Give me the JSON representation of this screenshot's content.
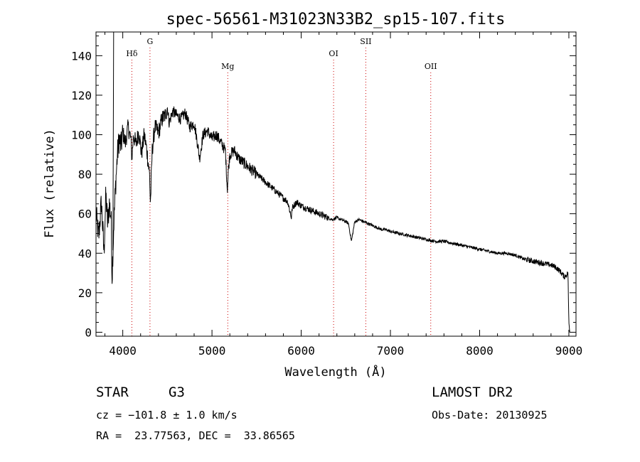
{
  "chart_data": {
    "type": "line",
    "title": "spec-56561-M31023N33B2_sp15-107.fits",
    "xlabel": "Wavelength (Å)",
    "ylabel": "Flux (relative)",
    "xlim": [
      3700,
      9080
    ],
    "ylim": [
      -2,
      152
    ],
    "x_ticks": [
      4000,
      5000,
      6000,
      7000,
      8000,
      9000
    ],
    "y_ticks": [
      0,
      20,
      40,
      60,
      80,
      100,
      120,
      140
    ],
    "grid": false,
    "series": [
      {
        "name": "flux",
        "x": [
          3700,
          3730,
          3760,
          3790,
          3810,
          3830,
          3850,
          3870,
          3880,
          3900,
          3920,
          3940,
          3960,
          3980,
          4000,
          4030,
          4060,
          4090,
          4102,
          4120,
          4150,
          4180,
          4210,
          4240,
          4270,
          4300,
          4310,
          4330,
          4360,
          4400,
          4440,
          4480,
          4500,
          4520,
          4560,
          4600,
          4650,
          4700,
          4750,
          4800,
          4830,
          4861,
          4900,
          4950,
          5000,
          5050,
          5100,
          5150,
          5172,
          5183,
          5200,
          5250,
          5300,
          5350,
          5400,
          5450,
          5500,
          5550,
          5600,
          5650,
          5700,
          5750,
          5800,
          5850,
          5890,
          5900,
          5950,
          6000,
          6050,
          6100,
          6150,
          6200,
          6250,
          6300,
          6350,
          6400,
          6450,
          6500,
          6530,
          6563,
          6600,
          6650,
          6700,
          6750,
          6800,
          6850,
          6900,
          6950,
          7000,
          7100,
          7200,
          7300,
          7400,
          7500,
          7600,
          7700,
          7800,
          7900,
          8000,
          8100,
          8200,
          8300,
          8400,
          8500,
          8600,
          8700,
          8800,
          8850,
          8900,
          8950,
          8990,
          9000,
          9010
        ],
        "values": [
          60,
          48,
          66,
          40,
          70,
          55,
          65,
          58,
          28,
          55,
          75,
          90,
          98,
          94,
          101,
          96,
          104,
          98,
          88,
          100,
          95,
          102,
          90,
          100,
          92,
          80,
          65,
          92,
          104,
          101,
          108,
          110,
          114,
          106,
          112,
          110,
          108,
          111,
          104,
          106,
          98,
          88,
          100,
          102,
          98,
          100,
          96,
          92,
          72,
          82,
          90,
          92,
          88,
          86,
          84,
          82,
          80,
          78,
          76,
          74,
          72,
          70,
          68,
          66,
          58,
          63,
          66,
          64,
          63,
          62,
          61,
          60,
          59,
          58,
          57,
          58,
          57,
          56,
          55,
          46,
          56,
          57,
          56,
          55,
          54,
          53,
          52,
          52,
          51,
          50,
          49,
          48,
          47,
          46,
          46,
          45,
          44,
          43,
          42,
          41,
          40,
          40,
          39,
          37,
          36,
          35,
          34,
          33,
          31,
          28,
          30,
          5,
          0
        ]
      }
    ],
    "line_markers": [
      {
        "label": "Hδ",
        "x": 4102,
        "label_pos": "upper"
      },
      {
        "label": "G",
        "x": 4305,
        "label_pos": "top"
      },
      {
        "label": "Mg",
        "x": 5177,
        "label_pos": "lower"
      },
      {
        "label": "OI",
        "x": 6363,
        "label_pos": "upper"
      },
      {
        "label": "SII",
        "x": 6724,
        "label_pos": "top"
      },
      {
        "label": "OII",
        "x": 7452,
        "label_pos": "lower"
      }
    ],
    "marker_line_color": "#cc0000"
  },
  "info": {
    "object_type": "STAR",
    "subclass": "G3",
    "survey": "LAMOST DR2",
    "cz": "cz = −101.8 ± 1.0 km/s",
    "obs_date": "Obs-Date: 20130925",
    "coords": "RA =  23.77563, DEC =  33.86565"
  }
}
